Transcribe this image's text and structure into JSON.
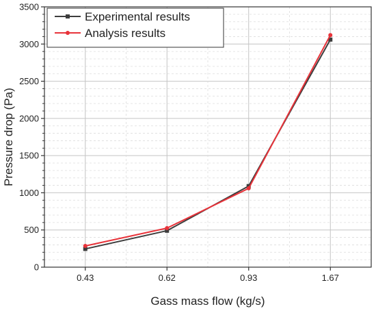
{
  "chart_data": {
    "type": "line",
    "categories": [
      "0.43",
      "0.62",
      "0.93",
      "1.67"
    ],
    "series": [
      {
        "name": "Experimental results",
        "values": [
          245,
          490,
          1090,
          3060
        ],
        "color": "#3d3d3d",
        "marker": "square"
      },
      {
        "name": "Analysis results",
        "values": [
          285,
          525,
          1060,
          3120
        ],
        "color": "#e8333a",
        "marker": "circle"
      }
    ],
    "xlabel": "Gass mass flow (kg/s)",
    "ylabel": "Pressure drop (Pa)",
    "ylim": [
      0,
      3500
    ],
    "yticks": [
      "0",
      "500",
      "1000",
      "1500",
      "2000",
      "2500",
      "3000",
      "3500"
    ],
    "grid": true,
    "legend_position": "top-left"
  }
}
